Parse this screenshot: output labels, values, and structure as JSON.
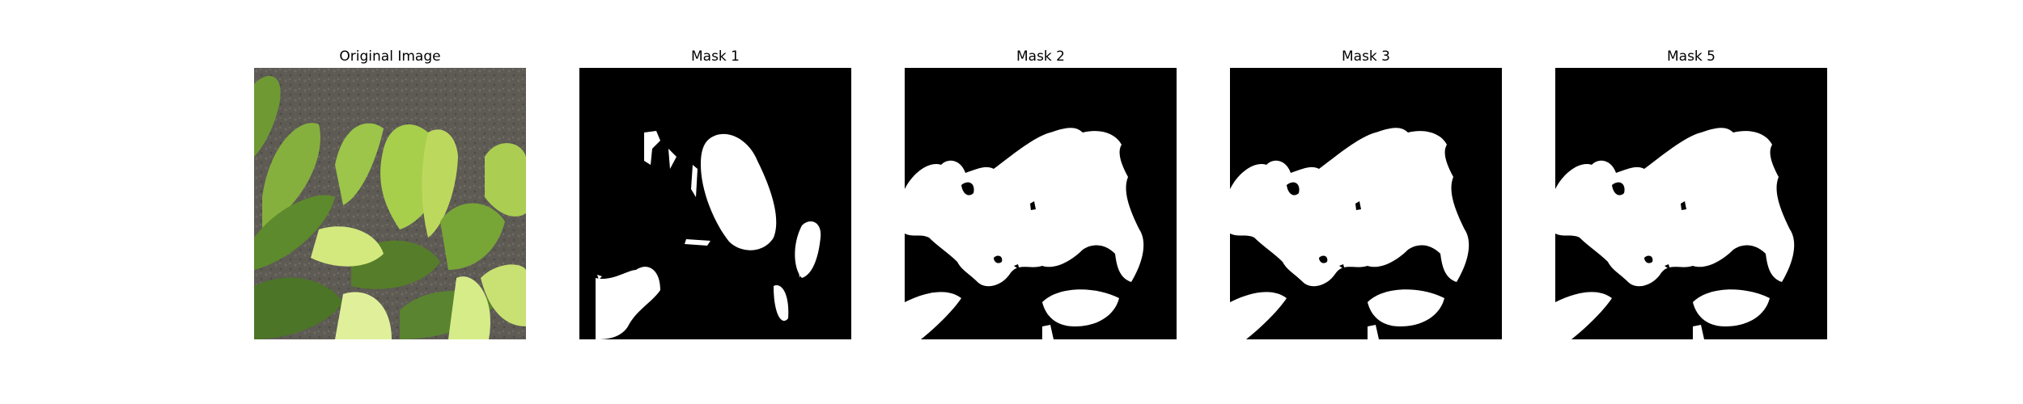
{
  "figure": {
    "panels": [
      {
        "title": "Original Image",
        "kind": "photo",
        "subject": "green leaves against gray textured background"
      },
      {
        "title": "Mask 1",
        "kind": "binary-mask"
      },
      {
        "title": "Mask 2",
        "kind": "binary-mask"
      },
      {
        "title": "Mask 3",
        "kind": "binary-mask"
      },
      {
        "title": "Mask 5",
        "kind": "binary-mask"
      }
    ],
    "colors": {
      "mask_foreground": "#ffffff",
      "mask_background": "#000000",
      "leaf_dark": "#4f7a2b",
      "leaf_mid": "#7faa3a",
      "leaf_light": "#c9e27a",
      "bark": "#5f5b55"
    }
  }
}
